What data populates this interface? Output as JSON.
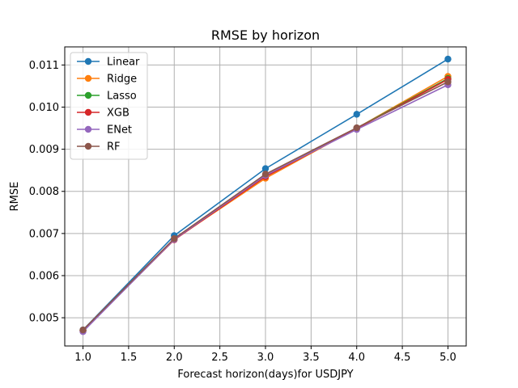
{
  "chart_data": {
    "type": "line",
    "title": "RMSE by horizon",
    "xlabel": "Forecast horizon(days)for USDJPY",
    "ylabel": "RMSE",
    "xlim": [
      0.8,
      5.2
    ],
    "ylim": [
      0.00433,
      0.01143
    ],
    "x_ticks": [
      "1.0",
      "1.5",
      "2.0",
      "2.5",
      "3.0",
      "3.5",
      "4.0",
      "4.5",
      "5.0"
    ],
    "y_ticks": [
      "0.005",
      "0.006",
      "0.007",
      "0.008",
      "0.009",
      "0.010",
      "0.011"
    ],
    "grid": true,
    "legend_position": "top-left",
    "x": [
      1.0,
      2.0,
      3.0,
      4.0,
      5.0
    ],
    "series": [
      {
        "name": "Linear",
        "color": "#1f77b4",
        "values": [
          0.00471,
          0.00695,
          0.00854,
          0.00983,
          0.01114
        ]
      },
      {
        "name": "Ridge",
        "color": "#ff7f0e",
        "values": [
          0.0047,
          0.00686,
          0.00831,
          0.0095,
          0.01073
        ]
      },
      {
        "name": "Lasso",
        "color": "#2ca02c",
        "values": [
          0.0047,
          0.00687,
          0.00836,
          0.0095,
          0.01068
        ]
      },
      {
        "name": "XGB",
        "color": "#d62728",
        "values": [
          0.00469,
          0.00685,
          0.00835,
          0.00949,
          0.01066
        ]
      },
      {
        "name": "ENet",
        "color": "#9467bd",
        "values": [
          0.00467,
          0.00686,
          0.00838,
          0.00947,
          0.01053
        ]
      },
      {
        "name": "RF",
        "color": "#8c564b",
        "values": [
          0.00471,
          0.00688,
          0.00841,
          0.00951,
          0.0106
        ]
      }
    ]
  }
}
